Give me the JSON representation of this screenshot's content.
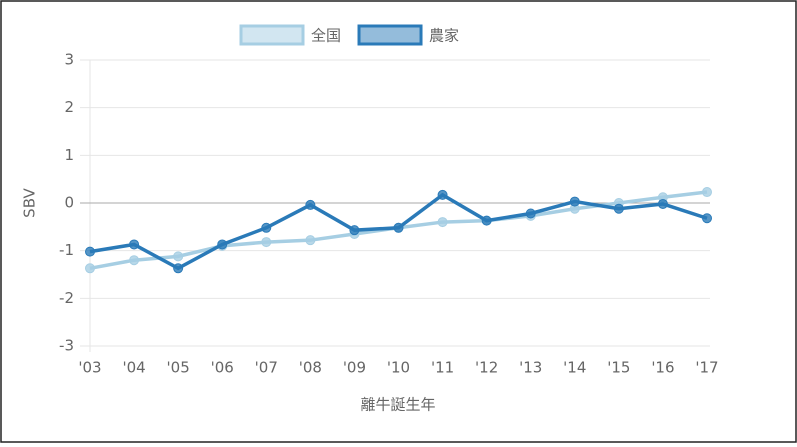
{
  "chart_data": {
    "type": "line",
    "categories": [
      "'03",
      "'04",
      "'05",
      "'06",
      "'07",
      "'08",
      "'09",
      "'10",
      "'11",
      "'12",
      "'13",
      "'14",
      "'15",
      "'16",
      "'17"
    ],
    "series": [
      {
        "name": "全国",
        "color": "#a6cee3",
        "values": [
          -1.37,
          -1.2,
          -1.12,
          -0.9,
          -0.82,
          -0.78,
          -0.65,
          -0.52,
          -0.4,
          -0.37,
          -0.27,
          -0.12,
          0.0,
          0.12,
          0.23
        ]
      },
      {
        "name": "農家",
        "color": "#2a7ab8",
        "values": [
          -1.02,
          -0.87,
          -1.37,
          -0.87,
          -0.52,
          -0.04,
          -0.57,
          -0.52,
          0.17,
          -0.37,
          -0.22,
          0.03,
          -0.12,
          -0.02,
          -0.32
        ]
      }
    ],
    "y_label": "SBV",
    "x_label": "離牛誕生年",
    "ylim": [
      -3,
      3
    ],
    "yticks": [
      -3,
      -2,
      -1,
      0,
      1,
      2,
      3
    ],
    "grid": true
  }
}
